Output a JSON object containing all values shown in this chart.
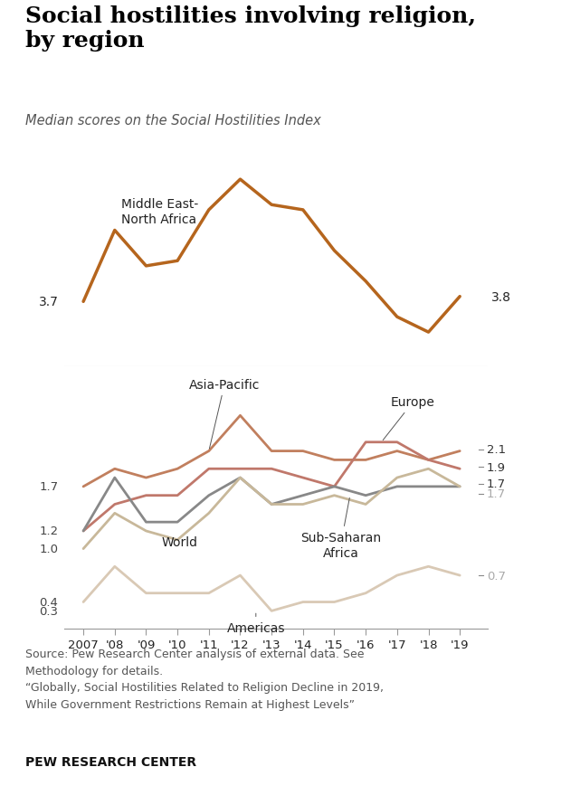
{
  "title": "Social hostilities involving religion,\nby region",
  "subtitle": "Median scores on the Social Hostilities Index",
  "years": [
    2007,
    2008,
    2009,
    2010,
    2011,
    2012,
    2013,
    2014,
    2015,
    2016,
    2017,
    2018,
    2019
  ],
  "x_labels": [
    "2007",
    "'08",
    "'09",
    "'10",
    "'11",
    "'12",
    "'13",
    "'14",
    "'15",
    "'16",
    "'17",
    "'18",
    "'19"
  ],
  "mena": {
    "values": [
      3.7,
      5.1,
      4.4,
      4.5,
      5.5,
      6.1,
      5.6,
      5.5,
      4.7,
      4.1,
      3.4,
      3.1,
      3.8
    ],
    "color": "#b5651d",
    "linewidth": 2.5
  },
  "bottom_series": [
    {
      "name": "Asia-Pacific",
      "values": [
        1.7,
        1.9,
        1.8,
        1.9,
        2.1,
        2.5,
        2.1,
        2.1,
        2.0,
        2.0,
        2.1,
        2.0,
        2.1
      ],
      "color": "#c17f5e",
      "linewidth": 2.0,
      "end_label": "2.1",
      "end_label_color": "#333333"
    },
    {
      "name": "Europe",
      "values": [
        1.2,
        1.5,
        1.6,
        1.6,
        1.9,
        1.9,
        1.9,
        1.8,
        1.7,
        2.2,
        2.2,
        2.0,
        1.9
      ],
      "color": "#c0786b",
      "linewidth": 2.0,
      "end_label": "1.9",
      "end_label_color": "#333333"
    },
    {
      "name": "World",
      "values": [
        1.2,
        1.8,
        1.3,
        1.3,
        1.6,
        1.8,
        1.5,
        1.6,
        1.7,
        1.6,
        1.7,
        1.7,
        1.7
      ],
      "color": "#888888",
      "linewidth": 2.0,
      "end_label": "1.7",
      "end_label_color": "#333333"
    },
    {
      "name": "Sub-Saharan\nAfrica",
      "values": [
        1.0,
        1.4,
        1.2,
        1.1,
        1.4,
        1.8,
        1.5,
        1.5,
        1.6,
        1.5,
        1.8,
        1.9,
        1.7
      ],
      "color": "#c8b89a",
      "linewidth": 2.0,
      "end_label": "1.7",
      "end_label_color": "#aaaaaa"
    },
    {
      "name": "Americas",
      "values": [
        0.4,
        0.8,
        0.5,
        0.5,
        0.5,
        0.7,
        0.3,
        0.4,
        0.4,
        0.5,
        0.7,
        0.8,
        0.7
      ],
      "color": "#d9c9b5",
      "linewidth": 2.0,
      "end_label": "0.7",
      "end_label_color": "#aaaaaa"
    }
  ],
  "source_text": "Source: Pew Research Center analysis of external data. See\nMethodology for details.\n“Globally, Social Hostilities Related to Religion Decline in 2019,\nWhile Government Restrictions Remain at Highest Levels”",
  "footer_text": "PEW RESEARCH CENTER",
  "background_color": "#ffffff"
}
